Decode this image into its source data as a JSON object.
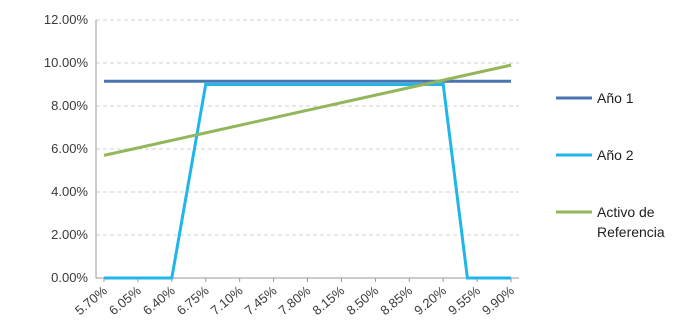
{
  "chart_data": {
    "type": "line",
    "title": "",
    "xlabel": "",
    "ylabel": "",
    "x": [
      "5.70%",
      "6.05%",
      "6.40%",
      "6.75%",
      "7.10%",
      "7.45%",
      "7.80%",
      "8.15%",
      "8.50%",
      "8.85%",
      "9.20%",
      "9.55%",
      "9.90%"
    ],
    "y_ticks": [
      "0.00%",
      "2.00%",
      "4.00%",
      "6.00%",
      "8.00%",
      "10.00%",
      "12.00%"
    ],
    "ylim": [
      0,
      12
    ],
    "grid": "horizontal dashed",
    "legend_position": "right",
    "series": [
      {
        "name": "Año 1",
        "color": "#4a74b0",
        "points": [
          [
            5.7,
            9.15
          ],
          [
            9.9,
            9.15
          ]
        ]
      },
      {
        "name": "Año 2",
        "color": "#1fb6ea",
        "points": [
          [
            5.7,
            0.0
          ],
          [
            6.4,
            0.0
          ],
          [
            6.75,
            9.0
          ],
          [
            9.2,
            9.0
          ],
          [
            9.45,
            0.0
          ],
          [
            9.9,
            0.0
          ]
        ]
      },
      {
        "name": "Activo de Referencia",
        "legend_lines": [
          "Activo de",
          "Referencia"
        ],
        "color": "#93b65a",
        "points": [
          [
            5.7,
            5.7
          ],
          [
            9.9,
            9.9
          ]
        ]
      }
    ]
  }
}
